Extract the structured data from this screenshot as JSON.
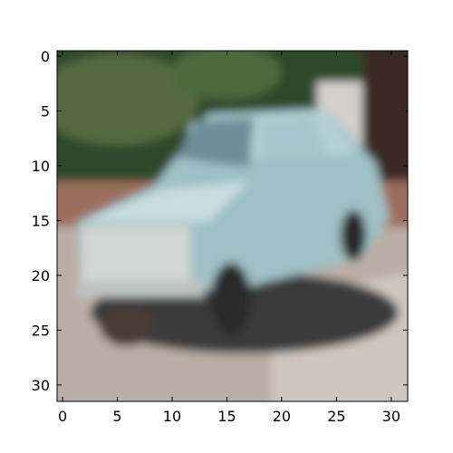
{
  "chart_data": {
    "type": "heatmap",
    "image_subject": "light blue vintage car parked on a street",
    "x_ticks": [
      "0",
      "5",
      "10",
      "15",
      "20",
      "25",
      "30"
    ],
    "y_ticks": [
      "0",
      "5",
      "10",
      "15",
      "20",
      "25",
      "30"
    ],
    "xlim": [
      -0.5,
      31.5
    ],
    "ylim": [
      31.5,
      -0.5
    ],
    "grid": false,
    "colors": {
      "foliage_dark": "#2f4a2c",
      "foliage_mid": "#556b3f",
      "tree_trunk": "#3a2a22",
      "road": "#b9aea6",
      "road_light": "#cfc6bf",
      "curb": "#9c6e5e",
      "car_body": "#9fc0c6",
      "car_highlight": "#c7dde0",
      "car_shadow": "#3b3a3a",
      "window": "#6f8c98",
      "grille": "#d3d6d4",
      "tire": "#2a2a2a"
    }
  }
}
